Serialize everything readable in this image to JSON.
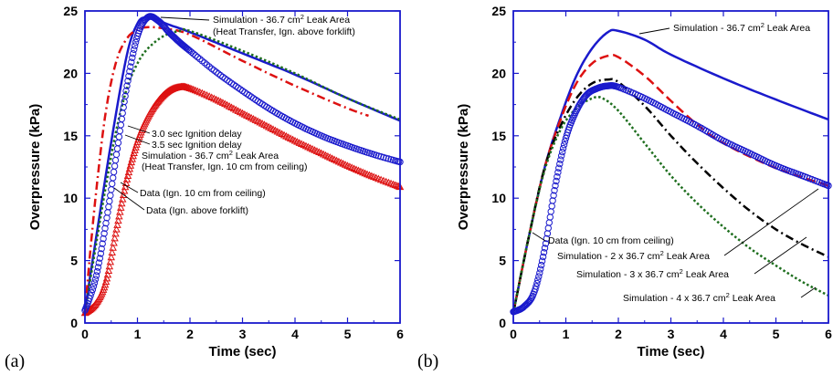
{
  "colors": {
    "blue": "#1a1acc",
    "red": "#dd1111",
    "green": "#1e6e1e",
    "black": "#000000",
    "frame": "#1a1acc"
  },
  "chart_data": [
    {
      "type": "line",
      "panel_label": "(a)",
      "xlabel": "Time (sec)",
      "ylabel": "Overpressure (kPa)",
      "xlim": [
        0,
        6
      ],
      "ylim": [
        0,
        25
      ],
      "xticks": [
        0,
        1,
        2,
        3,
        4,
        5,
        6
      ],
      "yticks": [
        0,
        5,
        10,
        15,
        20,
        25
      ],
      "series": [
        {
          "key": "sim_heat_forklift",
          "color": "blue",
          "style": "solid",
          "width": 2.5,
          "x": [
            0,
            0.2,
            0.5,
            0.8,
            1.0,
            1.15,
            1.3,
            1.6,
            2.0,
            3.0,
            4.0,
            5.0,
            6.0
          ],
          "y": [
            1.0,
            6.5,
            14.5,
            21.5,
            24.0,
            24.5,
            24.4,
            23.9,
            23.3,
            21.6,
            19.9,
            18.0,
            16.2
          ]
        },
        {
          "key": "delay_3_0",
          "color": "red",
          "style": "dashdot",
          "width": 2.5,
          "x": [
            0,
            0.2,
            0.4,
            0.6,
            0.8,
            1.0,
            1.2,
            1.5,
            2.0,
            3.0,
            4.0,
            5.0,
            5.4
          ],
          "y": [
            1.0,
            10.0,
            17.0,
            21.0,
            22.8,
            23.5,
            23.7,
            23.6,
            23.1,
            21.0,
            19.0,
            17.2,
            16.6
          ]
        },
        {
          "key": "delay_3_5",
          "color": "green",
          "style": "dotted",
          "width": 2.5,
          "x": [
            0,
            0.2,
            0.4,
            0.6,
            0.8,
            1.0,
            1.2,
            1.5,
            1.8,
            2.0,
            3.0,
            4.0,
            5.0,
            6.0
          ],
          "y": [
            0.8,
            6.0,
            11.0,
            15.5,
            18.8,
            20.8,
            22.0,
            23.0,
            23.4,
            23.4,
            21.8,
            20.0,
            18.0,
            16.3
          ]
        },
        {
          "key": "data_ceiling",
          "color": "red",
          "marker": "triangle",
          "x": [
            0,
            0.2,
            0.4,
            0.6,
            0.8,
            1.0,
            1.2,
            1.4,
            1.6,
            1.8,
            2.0,
            2.5,
            3.0,
            3.5,
            4.0,
            4.5,
            5.0,
            5.5,
            6.0
          ],
          "y": [
            0.8,
            1.5,
            3.3,
            7.5,
            11.5,
            14.5,
            16.5,
            17.8,
            18.6,
            18.9,
            18.8,
            17.9,
            16.8,
            15.7,
            14.6,
            13.6,
            12.6,
            11.7,
            10.9
          ]
        },
        {
          "key": "data_forklift",
          "color": "blue",
          "marker": "circle",
          "x": [
            0,
            0.2,
            0.4,
            0.6,
            0.8,
            1.0,
            1.2,
            1.4,
            1.6,
            1.8,
            2.0,
            2.5,
            3.0,
            3.5,
            4.0,
            4.5,
            5.0,
            5.5,
            6.0
          ],
          "y": [
            1.0,
            3.5,
            8.0,
            13.5,
            19.0,
            23.0,
            24.5,
            24.2,
            23.3,
            22.5,
            21.8,
            20.1,
            18.6,
            17.2,
            16.0,
            15.0,
            14.2,
            13.5,
            12.9
          ]
        }
      ],
      "annotations": [
        {
          "text": "Simulation - 36.7 cm",
          "sup": "2",
          "tail": " Leak Area"
        },
        {
          "text": "(Heat Transfer, Ign. above forklift)"
        },
        {
          "text": "3.0 sec Ignition delay"
        },
        {
          "text": "3.5 sec Ignition delay"
        },
        {
          "text": "Simulation - 36.7 cm",
          "sup": "2",
          "tail": " Leak Area"
        },
        {
          "text": "(Heat Transfer, Ign. 10 cm from ceiling)"
        },
        {
          "text": "Data (Ign. 10 cm from ceiling)"
        },
        {
          "text": "Data (Ign. above forklift)"
        }
      ]
    },
    {
      "type": "line",
      "panel_label": "(b)",
      "xlabel": "Time (sec)",
      "ylabel": "Overpressure (kPa)",
      "xlim": [
        0,
        6
      ],
      "ylim": [
        0,
        25
      ],
      "xticks": [
        0,
        1,
        2,
        3,
        4,
        5,
        6
      ],
      "yticks": [
        0,
        5,
        10,
        15,
        20,
        25
      ],
      "series": [
        {
          "key": "sim_1x",
          "color": "blue",
          "style": "solid",
          "width": 2.5,
          "x": [
            0,
            0.3,
            0.6,
            0.9,
            1.2,
            1.5,
            1.8,
            2.0,
            2.5,
            3.0,
            4.0,
            5.0,
            6.0
          ],
          "y": [
            0.8,
            7.0,
            12.5,
            16.5,
            19.8,
            22.0,
            23.3,
            23.4,
            22.7,
            21.5,
            19.6,
            17.9,
            16.3
          ]
        },
        {
          "key": "sim_2x",
          "color": "red",
          "style": "dashed",
          "width": 2.5,
          "x": [
            0,
            0.3,
            0.6,
            0.9,
            1.2,
            1.5,
            1.8,
            2.0,
            2.5,
            3.0,
            3.5,
            4.0,
            5.0,
            6.0
          ],
          "y": [
            0.8,
            7.0,
            12.5,
            16.3,
            19.2,
            20.8,
            21.4,
            21.3,
            19.8,
            17.8,
            15.9,
            14.4,
            12.4,
            11.0
          ]
        },
        {
          "key": "sim_3x",
          "color": "black",
          "style": "dashdot",
          "width": 2.5,
          "x": [
            0,
            0.3,
            0.6,
            0.9,
            1.2,
            1.5,
            1.8,
            2.0,
            2.5,
            3.0,
            3.5,
            4.0,
            4.5,
            5.0,
            5.5,
            6.0
          ],
          "y": [
            0.8,
            7.0,
            12.5,
            15.8,
            18.0,
            19.2,
            19.5,
            19.3,
            17.4,
            15.0,
            12.8,
            10.8,
            9.0,
            7.5,
            6.3,
            5.3
          ]
        },
        {
          "key": "sim_4x",
          "color": "green",
          "style": "dotted",
          "width": 2.5,
          "x": [
            0,
            0.3,
            0.6,
            0.9,
            1.2,
            1.5,
            1.7,
            2.0,
            2.5,
            3.0,
            3.5,
            4.0,
            4.5,
            5.0,
            5.5,
            6.0
          ],
          "y": [
            0.8,
            7.0,
            12.3,
            15.5,
            17.2,
            18.0,
            18.0,
            17.0,
            14.4,
            11.8,
            9.6,
            7.7,
            6.0,
            4.6,
            3.3,
            2.2
          ]
        },
        {
          "key": "data_ceiling_b",
          "color": "blue",
          "marker": "circle",
          "x": [
            0,
            0.2,
            0.4,
            0.6,
            0.8,
            1.0,
            1.2,
            1.4,
            1.6,
            1.8,
            2.0,
            2.5,
            3.0,
            3.5,
            4.0,
            4.5,
            5.0,
            5.5,
            6.0
          ],
          "y": [
            0.9,
            1.3,
            2.5,
            6.0,
            11.0,
            14.8,
            17.0,
            18.3,
            18.8,
            19.0,
            18.9,
            18.0,
            16.9,
            15.8,
            14.6,
            13.6,
            12.6,
            11.8,
            11.0
          ]
        }
      ],
      "annotations": [
        {
          "text": "Simulation - 36.7 cm",
          "sup": "2",
          "tail": " Leak Area"
        },
        {
          "text": "Data (Ign. 10 cm from ceiling)"
        },
        {
          "text": "Simulation - 2 x 36.7 cm",
          "sup": "2",
          "tail": " Leak Area"
        },
        {
          "text": "Simulation - 3 x 36.7 cm",
          "sup": "2",
          "tail": " Leak Area"
        },
        {
          "text": "Simulation - 4 x 36.7 cm",
          "sup": "2",
          "tail": " Leak Area"
        }
      ]
    }
  ]
}
